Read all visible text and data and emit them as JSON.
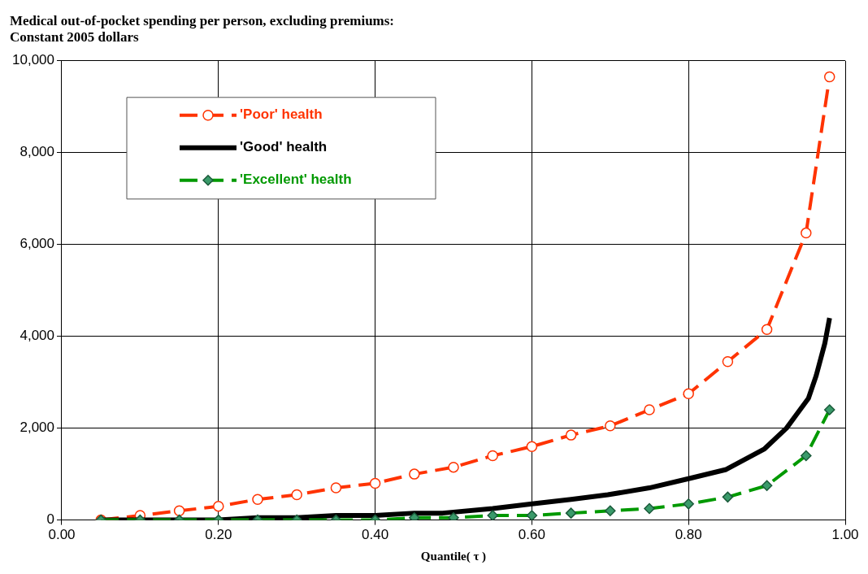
{
  "chart_data": {
    "type": "line",
    "title": "Medical out-of-pocket spending per person, excluding premiums:",
    "subtitle": "Constant 2005 dollars",
    "xlabel": "Quantile( τ )",
    "xlim": [
      0,
      1
    ],
    "xticks": [
      {
        "value": 0,
        "label": "0.00"
      },
      {
        "value": 0.2,
        "label": "0.20"
      },
      {
        "value": 0.4,
        "label": "0.40"
      },
      {
        "value": 0.6,
        "label": "0.60"
      },
      {
        "value": 0.8,
        "label": "0.80"
      },
      {
        "value": 1,
        "label": "1.00"
      }
    ],
    "ylim": [
      0,
      10000
    ],
    "yticks": [
      0,
      {
        "value": 2000,
        "label": "2,000"
      },
      {
        "value": 4000,
        "label": "4,000"
      },
      {
        "value": 6000,
        "label": "6,000"
      },
      {
        "value": 8000,
        "label": "8,000"
      },
      {
        "value": 10000,
        "label": "10,000"
      }
    ],
    "grid": true,
    "legend": "top left",
    "series": [
      {
        "name": "'Poor' health",
        "color": "#ff3300",
        "marker": "circle",
        "line_style": "dashed",
        "x": [
          0.05,
          0.1,
          0.15,
          0.2,
          0.25,
          0.3,
          0.35,
          0.4,
          0.45,
          0.5,
          0.55,
          0.6,
          0.65,
          0.7,
          0.75,
          0.8,
          0.85,
          0.9,
          0.95,
          0.98
        ],
        "values": [
          0,
          100,
          200,
          300,
          450,
          550,
          700,
          800,
          1000,
          1150,
          1400,
          1600,
          1850,
          2050,
          2400,
          2750,
          3450,
          4150,
          6250,
          9650
        ]
      },
      {
        "name": "'Good' health",
        "color": "#000000",
        "marker": "none",
        "line_style": "solid",
        "x": [
          0.05,
          0.2,
          0.25,
          0.3,
          0.35,
          0.4,
          0.45,
          0.486,
          0.55,
          0.6,
          0.65,
          0.697,
          0.75,
          0.8,
          0.848,
          0.897,
          0.925,
          0.953,
          0.963,
          0.974,
          0.98
        ],
        "values": [
          0,
          0,
          50,
          50,
          100,
          100,
          150,
          150,
          250,
          350,
          450,
          550,
          700,
          900,
          1100,
          1550,
          2000,
          2650,
          3150,
          3850,
          4400
        ]
      },
      {
        "name": "'Excellent' health",
        "color": "#009900",
        "marker": "diamond",
        "line_style": "dashed",
        "x": [
          0.05,
          0.1,
          0.15,
          0.2,
          0.25,
          0.3,
          0.35,
          0.4,
          0.45,
          0.5,
          0.55,
          0.6,
          0.65,
          0.7,
          0.75,
          0.8,
          0.85,
          0.9,
          0.95,
          0.98
        ],
        "values": [
          0,
          0,
          0,
          0,
          0,
          0,
          0,
          0,
          50,
          50,
          100,
          100,
          150,
          200,
          250,
          350,
          500,
          750,
          1400,
          2400
        ]
      }
    ]
  }
}
